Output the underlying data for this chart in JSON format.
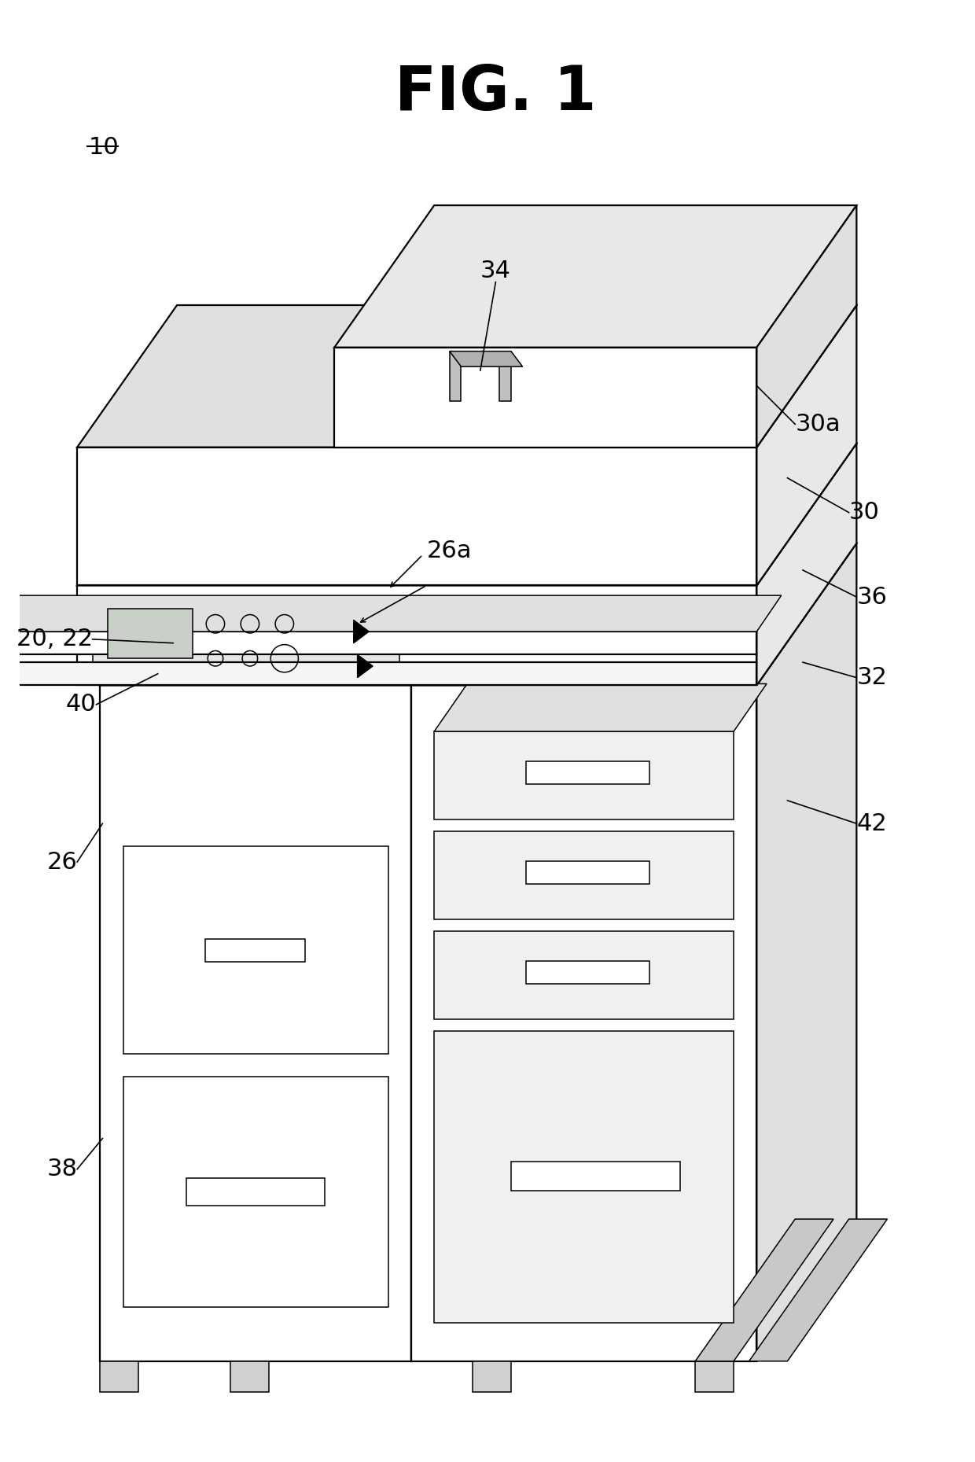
{
  "title": "FIG. 1",
  "bg": "#ffffff",
  "lc": "#000000",
  "lw": 1.6,
  "lw_thin": 1.1,
  "white": "#ffffff",
  "light_gray": "#e8e8e8",
  "mid_gray": "#d8d8d8",
  "dark_gray": "#c8c8c8"
}
